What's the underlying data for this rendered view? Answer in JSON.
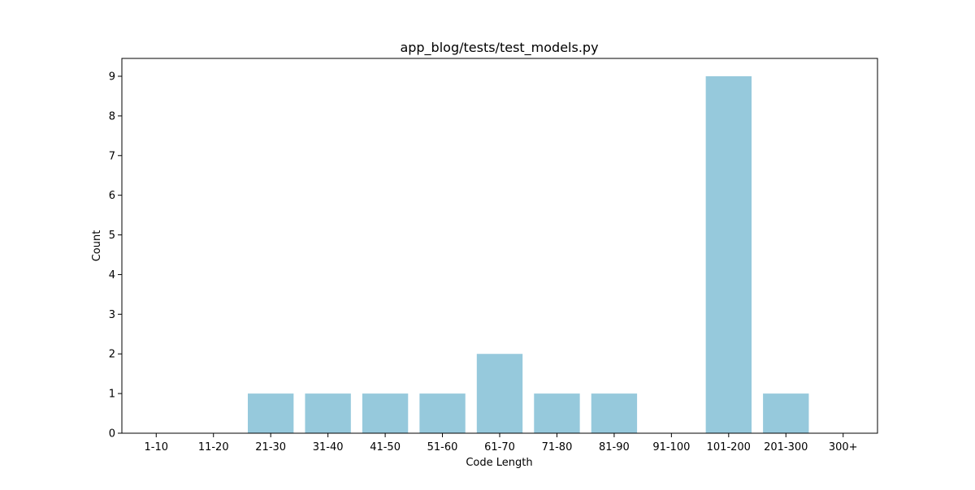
{
  "chart_data": {
    "type": "bar",
    "title": "app_blog/tests/test_models.py",
    "xlabel": "Code Length",
    "ylabel": "Count",
    "categories": [
      "1-10",
      "11-20",
      "21-30",
      "31-40",
      "41-50",
      "51-60",
      "61-70",
      "71-80",
      "81-90",
      "91-100",
      "101-200",
      "201-300",
      "300+"
    ],
    "values": [
      0,
      0,
      1,
      1,
      1,
      1,
      2,
      1,
      1,
      0,
      9,
      1,
      0
    ],
    "ylim": [
      0,
      9.45
    ],
    "yticks": [
      "0",
      "1",
      "2",
      "3",
      "4",
      "5",
      "6",
      "7",
      "8",
      "9"
    ],
    "grid": false,
    "legend": "none",
    "bar_color": "#96c9dc"
  }
}
